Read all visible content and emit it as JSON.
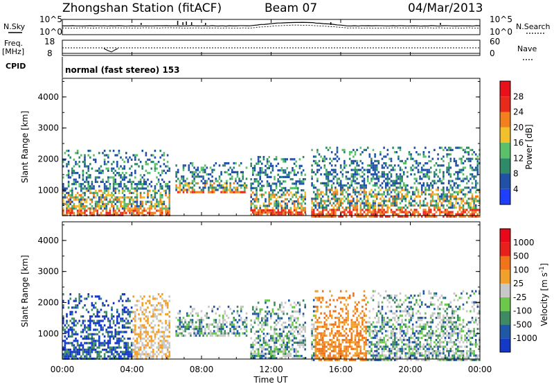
{
  "header": {
    "station": "Zhongshan Station (fitACF)",
    "beam": "Beam 07",
    "date": "04/Mar/2013"
  },
  "sky_panel": {
    "left_label": "N.Sky",
    "right_label": "N.Search",
    "left_ticks": [
      "10^5",
      "10^0"
    ],
    "right_ticks": [
      "10^5",
      "10^0"
    ]
  },
  "freq_panel": {
    "left_label_1": "Freq.",
    "left_label_2": "[MHz]",
    "right_label": "Nave",
    "left_ticks": [
      "18",
      "8"
    ],
    "right_ticks": [
      "60",
      "0"
    ]
  },
  "cpid": {
    "label": "CPID",
    "text": "normal (fast stereo) 153"
  },
  "power_panel": {
    "ylabel": "Slant Range [km]",
    "y_ticks": [
      "1000",
      "2000",
      "3000",
      "4000"
    ],
    "colorbar_label": "Power [dB]",
    "colorbar_ticks": [
      "4",
      "8",
      "12",
      "16",
      "20",
      "24",
      "28"
    ],
    "colors": [
      "#1f3fff",
      "#2050a8",
      "#2f8a68",
      "#5ac06a",
      "#f2c02c",
      "#f2801e",
      "#e82a1a",
      "#e8101a"
    ]
  },
  "velocity_panel": {
    "ylabel": "Slant Range [km]",
    "y_ticks": [
      "1000",
      "2000",
      "3000",
      "4000"
    ],
    "colorbar_label": "Velocity [m s",
    "colorbar_exp": "-1",
    "colorbar_ticks": [
      "1000",
      "500",
      "100",
      "25",
      "-25",
      "-100",
      "-500",
      "-1000"
    ],
    "colors": [
      "#1438c8",
      "#2058a8",
      "#3e8a62",
      "#6ac84a",
      "#c8c8c8",
      "#f2a02c",
      "#f2741a",
      "#e8201a",
      "#e8081a"
    ]
  },
  "x_axis": {
    "ticks": [
      "00:00",
      "04:00",
      "08:00",
      "12:00",
      "16:00",
      "20:00",
      "00:00"
    ],
    "label": "Time UT"
  },
  "chart_data": {
    "type": "heatmap",
    "x": [
      "00:00",
      "04:00",
      "08:00",
      "12:00",
      "16:00",
      "20:00",
      "00:00"
    ],
    "xlabel": "Time UT",
    "ylabel": "Slant Range [km]",
    "ylim": [
      180,
      4600
    ],
    "panels": [
      {
        "name": "Power",
        "unit": "dB",
        "colorbar_range": [
          0,
          30
        ]
      },
      {
        "name": "Velocity",
        "unit": "m s-1",
        "colorbar_range": [
          -1000,
          1000
        ]
      }
    ],
    "scatter_regions_hours": [
      {
        "start": 0.0,
        "end": 6.2,
        "range_km": [
          180,
          2300
        ]
      },
      {
        "start": 6.5,
        "end": 10.6,
        "range_km": [
          900,
          1900
        ]
      },
      {
        "start": 10.8,
        "end": 14.0,
        "range_km": [
          200,
          2100
        ]
      },
      {
        "start": 14.3,
        "end": 24.0,
        "range_km": [
          180,
          2400
        ]
      }
    ]
  }
}
